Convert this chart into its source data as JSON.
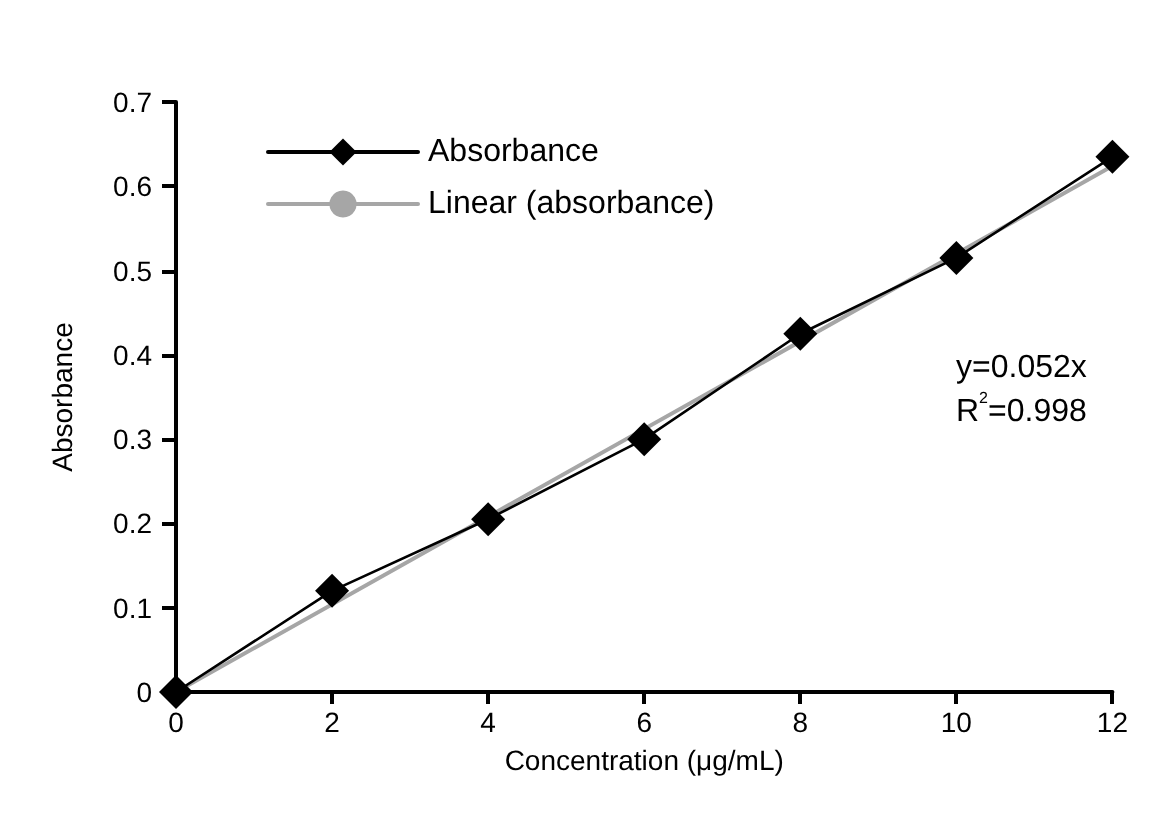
{
  "chart_data": {
    "type": "line",
    "xlabel": "Concentration (μg/mL)",
    "ylabel": "Absorbance",
    "x": [
      0,
      2,
      4,
      6,
      8,
      10,
      12
    ],
    "series": [
      {
        "name": "Absorbance",
        "color": "#000000",
        "values": [
          0,
          0.12,
          0.205,
          0.3,
          0.425,
          0.515,
          0.635
        ],
        "marker": "diamond"
      },
      {
        "name": "Linear (absorbance)",
        "color": "#a6a6a6",
        "type": "line",
        "x": [
          0,
          12
        ],
        "values": [
          0,
          0.624
        ],
        "marker": "none"
      }
    ],
    "xlim": [
      0,
      12
    ],
    "xticks": [
      0,
      2,
      4,
      6,
      8,
      10,
      12
    ],
    "ylim": [
      0,
      0.7
    ],
    "yticks": [
      0,
      0.1,
      0.2,
      0.3,
      0.4,
      0.5,
      0.6,
      0.7
    ],
    "grid": false,
    "legend": "top left",
    "annotations": [
      "y=0.052x",
      "R$^{2}$=0.998"
    ]
  }
}
